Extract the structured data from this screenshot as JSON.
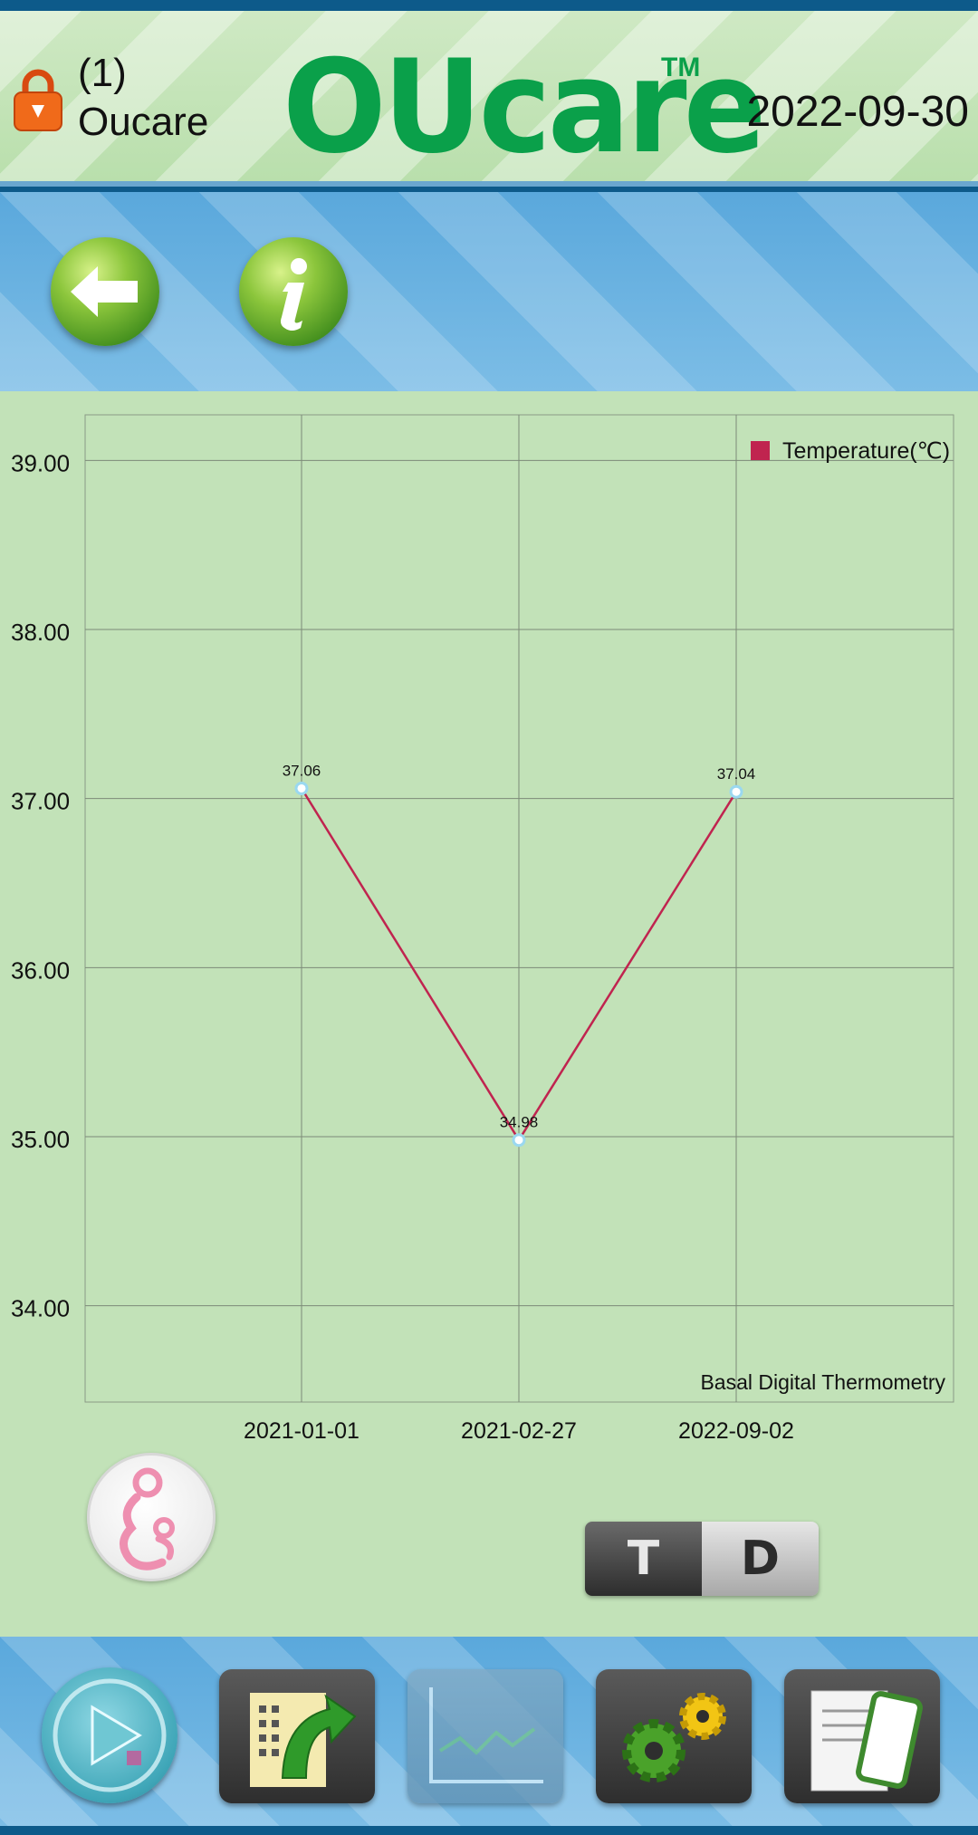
{
  "header": {
    "user_index": "(1)",
    "user_name": "Oucare",
    "logo_text": "OUcare",
    "trademark": "TM",
    "date": "2022-09-30"
  },
  "nav": {
    "back_icon": "arrow-left-icon",
    "info_icon": "info-icon"
  },
  "chart_data": {
    "type": "line",
    "categories": [
      "2021-01-01",
      "2021-02-27",
      "2022-09-02"
    ],
    "series": [
      {
        "name": "Temperature(℃)",
        "values": [
          37.06,
          34.98,
          37.04
        ],
        "color": "#c0244f"
      }
    ],
    "value_labels": [
      "37.06",
      "34.98",
      "37.04"
    ],
    "y_ticks": [
      "39.00",
      "38.00",
      "37.00",
      "36.00",
      "35.00",
      "34.00"
    ],
    "ylim": [
      33.43,
      39.27
    ],
    "annotation": "Basal Digital Thermometry",
    "grid": true,
    "legend_position": "top-right",
    "point_color": "#ffffff",
    "point_outline": "#9ad8f0"
  },
  "toggle": {
    "t_label": "T",
    "d_label": "D"
  },
  "bottom_nav": [
    {
      "icon": "play-measure-icon"
    },
    {
      "icon": "records-export-icon"
    },
    {
      "icon": "chart-icon"
    },
    {
      "icon": "settings-gears-icon"
    },
    {
      "icon": "phone-document-icon"
    }
  ],
  "colors": {
    "brand_green": "#0aa04a",
    "nav_blue": "#5aa8dc",
    "chart_bg": "#c2e2b8",
    "series_line": "#c0244f"
  }
}
